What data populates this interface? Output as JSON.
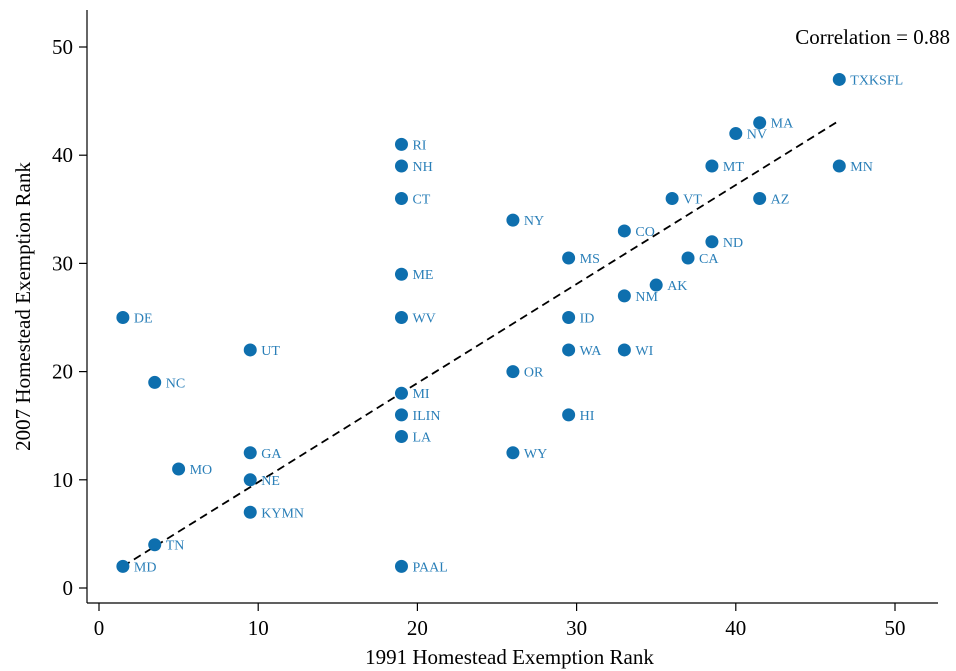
{
  "chart_data": {
    "type": "scatter",
    "title": "",
    "xlabel": "1991 Homestead Exemption Rank",
    "ylabel": "2007 Homestead Exemption Rank",
    "xlim": [
      -1,
      53
    ],
    "ylim": [
      -1,
      53
    ],
    "x_ticks": [
      0,
      10,
      20,
      30,
      40,
      50
    ],
    "y_ticks": [
      0,
      10,
      20,
      30,
      40,
      50
    ],
    "grid": false,
    "annotation": "Correlation = 0.88",
    "marker_color": "#0e6fae",
    "label_color": "#2a7fb8",
    "fit_line": {
      "style": "dashed",
      "x": [
        1.5,
        46.5
      ],
      "y": [
        2.0,
        43.2
      ]
    },
    "points": [
      {
        "label": "MD",
        "x": 1.5,
        "y": 2
      },
      {
        "label": "DE",
        "x": 1.5,
        "y": 25
      },
      {
        "label": "TN",
        "x": 3.5,
        "y": 4
      },
      {
        "label": "NC",
        "x": 3.5,
        "y": 19
      },
      {
        "label": "MO",
        "x": 5,
        "y": 11
      },
      {
        "label": "UT",
        "x": 9.5,
        "y": 22
      },
      {
        "label": "GA",
        "x": 9.5,
        "y": 12.5
      },
      {
        "label": "NE",
        "x": 9.5,
        "y": 10
      },
      {
        "label": "KYMN",
        "x": 9.5,
        "y": 7
      },
      {
        "label": "RI",
        "x": 19,
        "y": 41
      },
      {
        "label": "NH",
        "x": 19,
        "y": 39
      },
      {
        "label": "CT",
        "x": 19,
        "y": 36
      },
      {
        "label": "ME",
        "x": 19,
        "y": 29
      },
      {
        "label": "WV",
        "x": 19,
        "y": 25
      },
      {
        "label": "MI",
        "x": 19,
        "y": 18
      },
      {
        "label": "ILIN",
        "x": 19,
        "y": 16
      },
      {
        "label": "LA",
        "x": 19,
        "y": 14
      },
      {
        "label": "PAAL",
        "x": 19,
        "y": 2
      },
      {
        "label": "NY",
        "x": 26,
        "y": 34
      },
      {
        "label": "OR",
        "x": 26,
        "y": 20
      },
      {
        "label": "WY",
        "x": 26,
        "y": 12.5
      },
      {
        "label": "MS",
        "x": 29.5,
        "y": 30.5
      },
      {
        "label": "ID",
        "x": 29.5,
        "y": 25
      },
      {
        "label": "WA",
        "x": 29.5,
        "y": 22
      },
      {
        "label": "HI",
        "x": 29.5,
        "y": 16
      },
      {
        "label": "CO",
        "x": 33,
        "y": 33
      },
      {
        "label": "NM",
        "x": 33,
        "y": 27
      },
      {
        "label": "WI",
        "x": 33,
        "y": 22
      },
      {
        "label": "AK",
        "x": 35,
        "y": 28
      },
      {
        "label": "VT",
        "x": 36,
        "y": 36
      },
      {
        "label": "CA",
        "x": 37,
        "y": 30.5
      },
      {
        "label": "ND",
        "x": 38.5,
        "y": 32
      },
      {
        "label": "MT",
        "x": 38.5,
        "y": 39
      },
      {
        "label": "NV",
        "x": 40,
        "y": 42
      },
      {
        "label": "MA",
        "x": 41.5,
        "y": 43
      },
      {
        "label": "AZ",
        "x": 41.5,
        "y": 36
      },
      {
        "label": "MN",
        "x": 46.5,
        "y": 39
      },
      {
        "label": "TXKSFL",
        "x": 46.5,
        "y": 47
      }
    ]
  }
}
